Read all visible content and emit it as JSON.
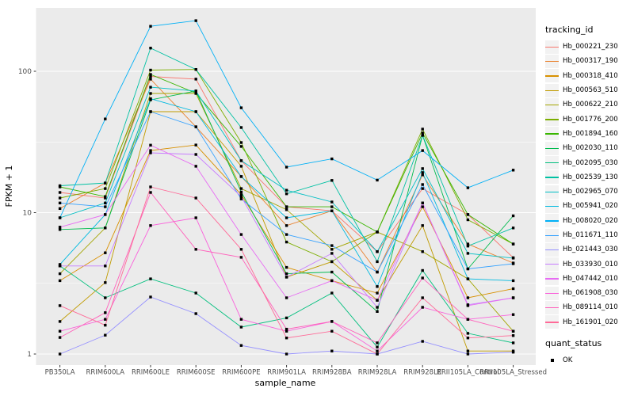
{
  "chart_data": {
    "type": "line",
    "title": "",
    "xlabel": "sample_name",
    "ylabel": "FPKM + 1",
    "y_scale": "log10",
    "y_ticks": [
      1,
      10,
      100
    ],
    "y_minor_ticks": [
      3.1623,
      31.623
    ],
    "ylim": [
      0.85,
      300
    ],
    "grid": "on",
    "legend_position": "right",
    "marker": "black-square",
    "categories": [
      "PB350LA",
      "RRIM600LA",
      "RRIM600LE",
      "RRIM600SE",
      "RRIM600PE",
      "RRIM901LA",
      "RRIM928BA",
      "RRIM928LA",
      "RRIM928LE",
      "RRII105LA_Control",
      "RRII105LA_Stressed"
    ],
    "series": [
      {
        "name": "Hb_000221_230",
        "color": "#F8766D",
        "values": [
          13.9,
          12.7,
          92,
          88,
          23.3,
          11.0,
          10.3,
          5.3,
          14.8,
          9.7,
          4.8
        ]
      },
      {
        "name": "Hb_000317_190",
        "color": "#EA8331",
        "values": [
          10.7,
          16.2,
          88,
          40.5,
          18.0,
          8.1,
          10.3,
          3.8,
          18.5,
          6.0,
          4.4
        ]
      },
      {
        "name": "Hb_000318_410",
        "color": "#D89000",
        "values": [
          3.3,
          5.2,
          27.5,
          30.1,
          13.4,
          4.1,
          3.3,
          2.7,
          11.0,
          2.5,
          2.9
        ]
      },
      {
        "name": "Hb_000563_510",
        "color": "#C09B00",
        "values": [
          1.7,
          3.2,
          51.8,
          51.8,
          21.3,
          3.5,
          4.5,
          2.4,
          8.1,
          1.05,
          1.05
        ]
      },
      {
        "name": "Hb_000622_210",
        "color": "#A3A500",
        "values": [
          3.7,
          7.8,
          69.7,
          69.7,
          14.8,
          10.5,
          5.5,
          7.3,
          5.3,
          3.4,
          1.45
        ]
      },
      {
        "name": "Hb_001776_200",
        "color": "#7CAE00",
        "values": [
          12.7,
          14.8,
          102,
          103,
          31.3,
          6.2,
          4.5,
          7.3,
          39.0,
          8.9,
          6.0
        ]
      },
      {
        "name": "Hb_001894_160",
        "color": "#39B600",
        "values": [
          15.2,
          13.0,
          95,
          70,
          29.4,
          11.0,
          11.0,
          7.3,
          36.6,
          9.7,
          6.0
        ]
      },
      {
        "name": "Hb_002030_110",
        "color": "#00BB4E",
        "values": [
          7.6,
          7.8,
          62.8,
          72.5,
          14.0,
          3.7,
          3.8,
          2.0,
          35.2,
          4.0,
          9.5
        ]
      },
      {
        "name": "Hb_002095_030",
        "color": "#00BF7D",
        "values": [
          4.2,
          2.5,
          3.4,
          2.7,
          1.55,
          1.8,
          2.7,
          1.12,
          3.9,
          1.4,
          1.2
        ]
      },
      {
        "name": "Hb_002539_130",
        "color": "#00C1A3",
        "values": [
          15.5,
          16.2,
          146,
          103,
          40,
          13.6,
          16.9,
          4.5,
          35.2,
          5.8,
          7.8
        ]
      },
      {
        "name": "Hb_002965_070",
        "color": "#00BFC4",
        "values": [
          9.2,
          11.7,
          77.2,
          72.5,
          23.3,
          14.4,
          11.9,
          5.3,
          20.5,
          5.15,
          4.77
        ]
      },
      {
        "name": "Hb_005941_020",
        "color": "#00BAE0",
        "values": [
          4.3,
          9.7,
          64,
          51.8,
          18,
          9.2,
          10.3,
          3.0,
          19.2,
          3.4,
          3.3
        ]
      },
      {
        "name": "Hb_008020_020",
        "color": "#00B0F6",
        "values": [
          9.2,
          46,
          208,
          228,
          55.2,
          21,
          24,
          17,
          27.5,
          15,
          20
        ]
      },
      {
        "name": "Hb_011671_110",
        "color": "#35A2FF",
        "values": [
          11.7,
          11.0,
          51.8,
          40.5,
          12.5,
          7.0,
          5.85,
          3.8,
          15.8,
          4.0,
          4.35
        ]
      },
      {
        "name": "Hb_021443_030",
        "color": "#9590FF",
        "values": [
          1.0,
          1.36,
          2.53,
          1.93,
          1.15,
          1.0,
          1.05,
          1.0,
          1.23,
          1.0,
          1.03
        ]
      },
      {
        "name": "Hb_033930_010",
        "color": "#C77CFF",
        "values": [
          4.2,
          4.2,
          26.5,
          25.8,
          13,
          3.5,
          5.15,
          2.14,
          11.7,
          2.23,
          2.5
        ]
      },
      {
        "name": "Hb_047442_010",
        "color": "#E76BF3",
        "values": [
          7.9,
          9.7,
          30,
          21.3,
          7.0,
          2.5,
          3.3,
          2.4,
          11.7,
          2.2,
          2.5
        ]
      },
      {
        "name": "Hb_061908_030",
        "color": "#FA62DB",
        "values": [
          1.45,
          1.76,
          8.1,
          9.2,
          1.76,
          1.45,
          1.7,
          1.05,
          2.14,
          1.76,
          1.9
        ]
      },
      {
        "name": "Hb_089114_010",
        "color": "#FF62BC",
        "values": [
          1.31,
          1.96,
          13.9,
          5.5,
          4.83,
          1.5,
          1.7,
          1.2,
          3.45,
          1.76,
          1.45
        ]
      },
      {
        "name": "Hb_161901_020",
        "color": "#FF6A98",
        "values": [
          2.2,
          1.6,
          15.2,
          12.7,
          5.5,
          1.3,
          1.45,
          1.0,
          2.5,
          1.3,
          1.35
        ]
      }
    ],
    "legend": {
      "series_title": "tracking_id",
      "status_title": "quant_status",
      "status_items": [
        {
          "label": "OK",
          "marker": "black-square",
          "color": "#000000"
        }
      ]
    }
  },
  "colors": {
    "panel_bg": "#EBEBEB",
    "grid_major": "#FFFFFF",
    "grid_minor": "#FFFFFF",
    "tick_label": "#4D4D4D",
    "axis_title": "#000000",
    "tick_mark": "#333333",
    "marker": "#000000",
    "legend_key_bg": "#F2F2F2"
  }
}
